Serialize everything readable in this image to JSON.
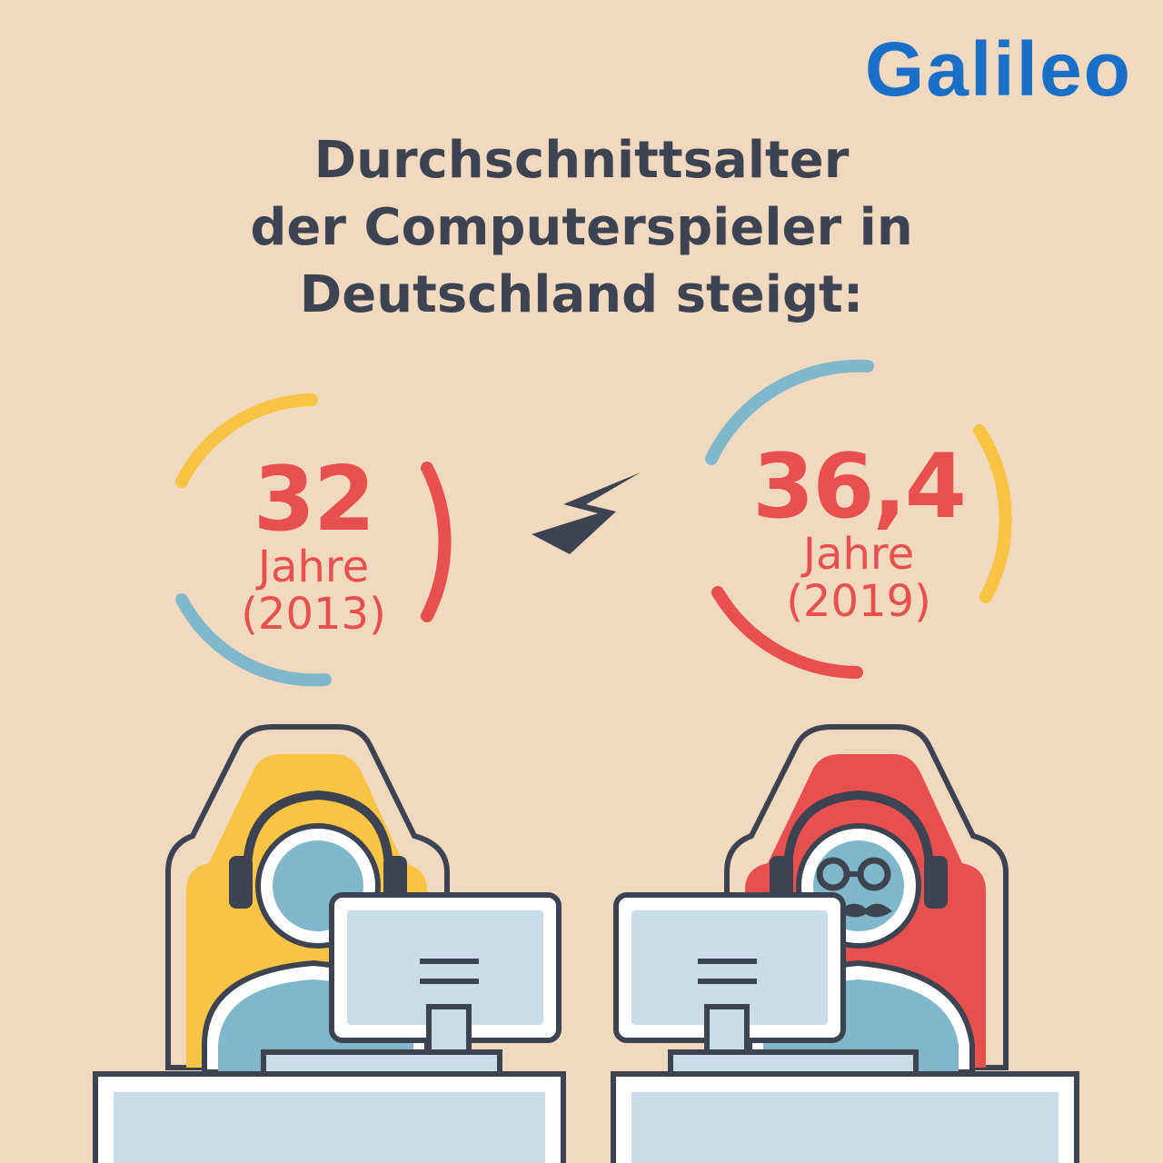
{
  "brand": {
    "logo_text": "Galileo",
    "accent": "#1a6fc8"
  },
  "headline": {
    "line1": "Durchschnittsalter",
    "line2": "der Computerspieler in",
    "line3": "Deutschland steigt:"
  },
  "stats": [
    {
      "value": "32",
      "unit": "Jahre",
      "year": "(2013)"
    },
    {
      "value": "36,4",
      "unit": "Jahre",
      "year": "(2019)"
    }
  ],
  "colors": {
    "background": "#f0d9bf",
    "text_dark": "#3d4350",
    "red": "#e8504f",
    "yellow": "#f8c444",
    "blue": "#80b8cb",
    "screen": "#c8dcea"
  },
  "icons": [
    "lightning-bolt-icon",
    "gamer-young-icon",
    "gamer-old-icon"
  ]
}
